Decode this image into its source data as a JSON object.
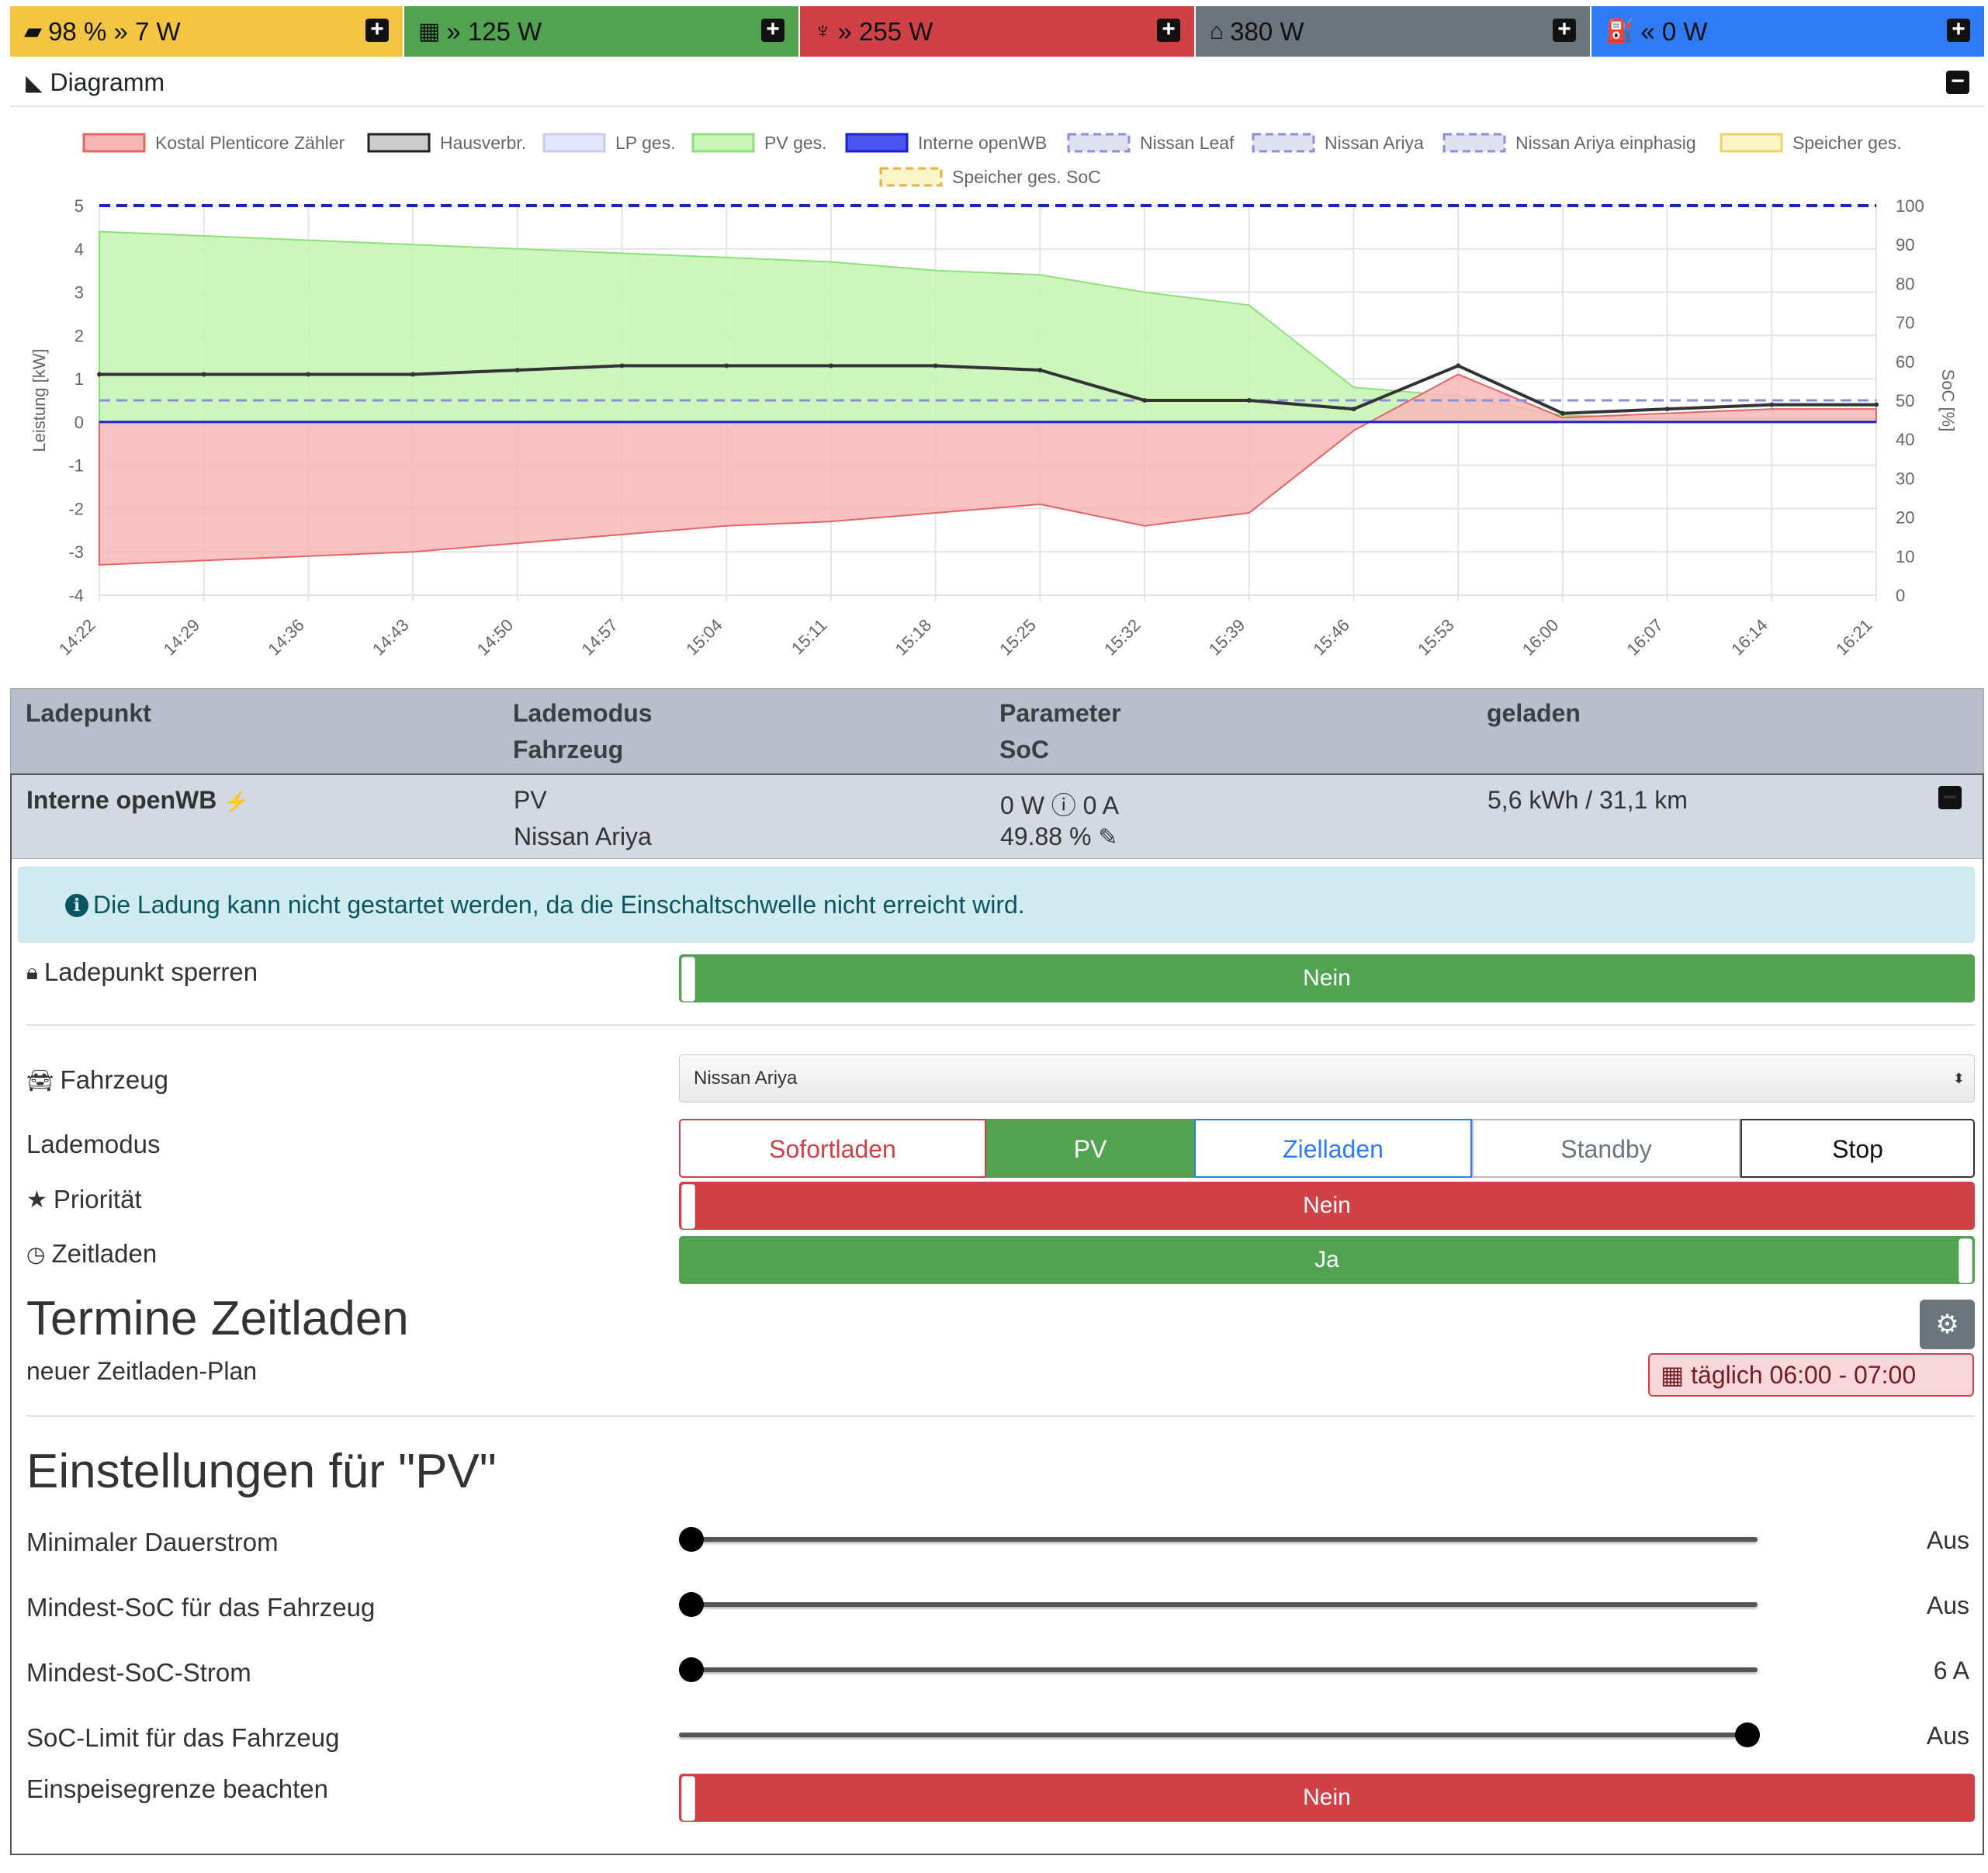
{
  "topbar": {
    "battery": {
      "text": "98 % » 7 W",
      "color": "#f4c542"
    },
    "pv": {
      "text": "» 125 W",
      "color": "#51a351"
    },
    "grid": {
      "text": "» 255 W",
      "color": "#cf4047"
    },
    "house": {
      "text": "380 W",
      "color": "#6c757d"
    },
    "charge": {
      "text": "« 0 W",
      "color": "#2f7bf5"
    }
  },
  "diagram": {
    "title": "Diagramm"
  },
  "chart_data": {
    "type": "area",
    "legend": [
      "Kostal Plenticore Zähler",
      "Hausverbr.",
      "LP ges.",
      "PV ges.",
      "Interne openWB",
      "Nissan Leaf",
      "Nissan Ariya",
      "Nissan Ariya einphasig",
      "Speicher ges.",
      "Speicher ges. SoC"
    ],
    "ylabel": "Leistung [kW]",
    "y2label": "SoC [%]",
    "ylim": [
      -4,
      5
    ],
    "y2lim": [
      0,
      100
    ],
    "yticks": [
      "5",
      "4",
      "3",
      "2",
      "1",
      "0",
      "-1",
      "-2",
      "-3",
      "-4"
    ],
    "y2ticks": [
      "100",
      "90",
      "80",
      "70",
      "60",
      "50",
      "40",
      "30",
      "20",
      "10",
      "0"
    ],
    "x": [
      "14:22",
      "14:29",
      "14:36",
      "14:43",
      "14:50",
      "14:57",
      "15:04",
      "15:11",
      "15:18",
      "15:25",
      "15:32",
      "15:39",
      "15:46",
      "15:53",
      "16:00",
      "16:07",
      "16:14",
      "16:21"
    ],
    "series": [
      {
        "name": "PV ges.",
        "values": [
          4.4,
          4.3,
          4.2,
          4.1,
          4.0,
          3.9,
          3.8,
          3.7,
          3.5,
          3.4,
          3.0,
          2.7,
          0.8,
          0.6,
          0.15,
          0.1,
          0.1,
          0.1
        ]
      },
      {
        "name": "Hausverbr.",
        "values": [
          1.1,
          1.1,
          1.1,
          1.1,
          1.2,
          1.3,
          1.3,
          1.3,
          1.3,
          1.2,
          0.5,
          0.5,
          0.3,
          1.3,
          0.2,
          0.3,
          0.4,
          0.4
        ]
      },
      {
        "name": "Kostal Plenticore Zähler",
        "values": [
          -3.3,
          -3.2,
          -3.1,
          -3.0,
          -2.8,
          -2.6,
          -2.4,
          -2.3,
          -2.1,
          -1.9,
          -2.4,
          -2.1,
          -0.2,
          1.1,
          0.1,
          0.2,
          0.3,
          0.3
        ]
      },
      {
        "name": "Nissan Ariya",
        "values": [
          50,
          50,
          50,
          50,
          50,
          50,
          50,
          50,
          50,
          50,
          50,
          50,
          50,
          50,
          50,
          50,
          50,
          50
        ]
      }
    ]
  },
  "table": {
    "headers": {
      "ladepunkt": "Ladepunkt",
      "lademodus": "Lademodus",
      "fahrzeug": "Fahrzeug",
      "parameter": "Parameter",
      "soc": "SoC",
      "geladen": "geladen"
    },
    "row": {
      "name": "Interne openWB",
      "mode": "PV",
      "vehicle": "Nissan Ariya",
      "params": "0 W ⓘ 0 A",
      "soc": "49.88 %",
      "charged": "5,6 kWh / 31,1 km"
    }
  },
  "info": "Die Ladung kann nicht gestartet werden, da die Einschaltschwelle nicht erreicht wird.",
  "lock": {
    "label": "Ladepunkt sperren",
    "value": "Nein"
  },
  "vehicle": {
    "label": "Fahrzeug",
    "selected": "Nissan Ariya"
  },
  "chargemode": {
    "label": "Lademodus",
    "options": [
      "Sofortladen",
      "PV",
      "Zielladen",
      "Standby",
      "Stop"
    ],
    "selected": "PV"
  },
  "priority": {
    "label": "Priorität",
    "value": "Nein"
  },
  "timecharge": {
    "label": "Zeitladen",
    "value": "Ja"
  },
  "schedule": {
    "title": "Termine Zeitladen",
    "new_plan": "neuer Zeitladen-Plan",
    "badge": "täglich 06:00 - 07:00"
  },
  "pv_settings": {
    "title": "Einstellungen für \"PV\"",
    "sliders": [
      {
        "label": "Minimaler Dauerstrom",
        "value": "Aus",
        "position": 0
      },
      {
        "label": "Mindest-SoC für das Fahrzeug",
        "value": "Aus",
        "position": 0
      },
      {
        "label": "Mindest-SoC-Strom",
        "value": "6 A",
        "position": 0
      },
      {
        "label": "SoC-Limit für das Fahrzeug",
        "value": "Aus",
        "position": 1
      }
    ],
    "feedin": {
      "label": "Einspeisegrenze beachten",
      "value": "Nein"
    }
  }
}
